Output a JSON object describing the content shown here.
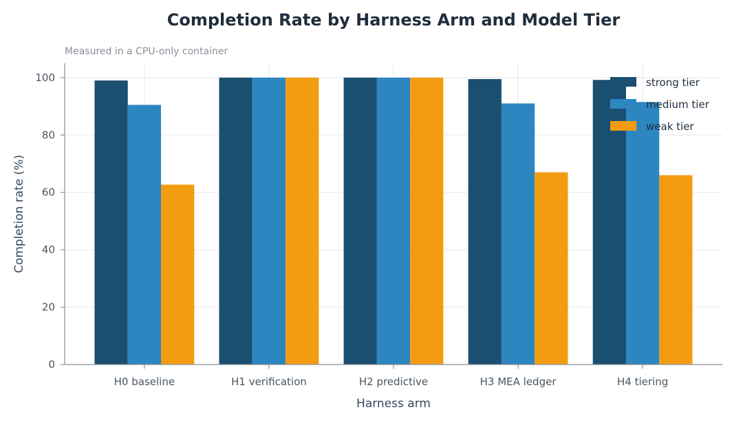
{
  "chart_data": {
    "type": "bar",
    "title": "Completion Rate by Harness Arm and Model Tier",
    "subtitle": "Measured in a CPU-only container",
    "xlabel": "Harness arm",
    "ylabel": "Completion rate (%)",
    "ylim": [
      0,
      105
    ],
    "yticks": [
      0,
      20,
      40,
      60,
      80,
      100
    ],
    "grid": true,
    "legend_placement": "top-right",
    "categories": [
      "H0 baseline",
      "H1 verification",
      "H2 predictive",
      "H3 MEA ledger",
      "H4 tiering"
    ],
    "series": [
      {
        "name": "strong tier",
        "color": "#1b4f72",
        "values": [
          99,
          100,
          100,
          99.5,
          99.2
        ]
      },
      {
        "name": "medium tier",
        "color": "#2e86c1",
        "values": [
          90.5,
          100,
          100,
          91,
          91.5
        ]
      },
      {
        "name": "weak tier",
        "color": "#f39c12",
        "values": [
          62.7,
          100,
          100,
          67,
          66
        ]
      }
    ]
  }
}
